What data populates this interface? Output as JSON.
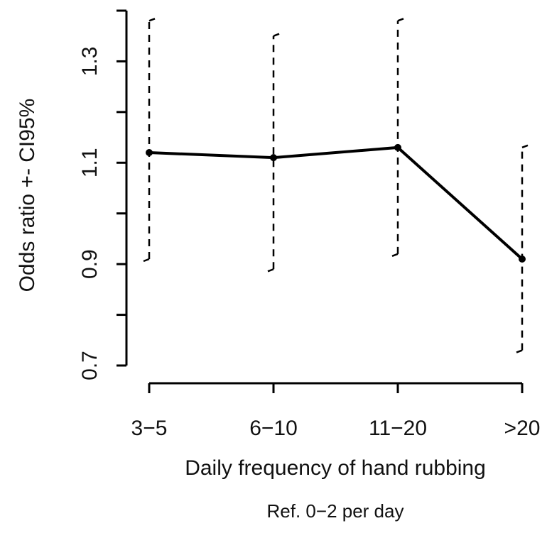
{
  "chart_data": {
    "type": "line",
    "ylabel": "Odds ratio +- CI95%",
    "xlabel": "Daily frequency of hand rubbing",
    "subtitle": "Ref. 0−2 per day",
    "categories": [
      "3−5",
      "6−10",
      "11−20",
      ">20"
    ],
    "values": [
      1.12,
      1.11,
      1.13,
      0.91
    ],
    "lower": [
      0.91,
      0.89,
      0.92,
      0.73
    ],
    "upper": [
      1.38,
      1.35,
      1.38,
      1.13
    ],
    "color": "#000000",
    "ylim": [
      0.7,
      1.4
    ],
    "yticks": [
      0.7,
      0.9,
      1.1,
      1.3
    ],
    "yminorticks": [
      0.8,
      1.0,
      1.2,
      1.4
    ]
  }
}
